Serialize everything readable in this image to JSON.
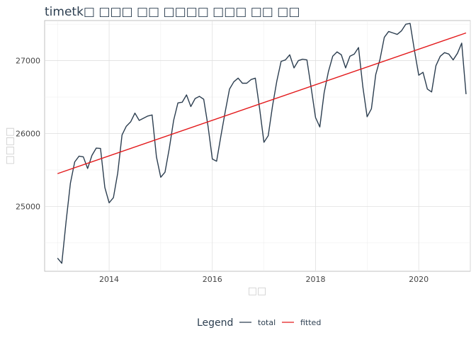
{
  "chart_data": {
    "type": "line",
    "title": "timetk□ □□□ □□ □□□□ □□□ □□ □□",
    "xlabel": "□□",
    "ylabel": "□□□□",
    "x_ticks": [
      "2014",
      "2016",
      "2018",
      "2020"
    ],
    "y_ticks": [
      "25000",
      "26000",
      "27000"
    ],
    "xlim": [
      2012.75,
      2021.0
    ],
    "ylim": [
      24110,
      27550
    ],
    "grid": true,
    "legend": {
      "title": "Legend",
      "position": "bottom",
      "labels": [
        "total",
        "fitted"
      ]
    },
    "series": [
      {
        "name": "total",
        "color": "#2c3e50",
        "x": [
          2013.0,
          2013.083,
          2013.167,
          2013.25,
          2013.333,
          2013.417,
          2013.5,
          2013.583,
          2013.667,
          2013.75,
          2013.833,
          2013.917,
          2014.0,
          2014.083,
          2014.167,
          2014.25,
          2014.333,
          2014.417,
          2014.5,
          2014.583,
          2014.667,
          2014.75,
          2014.833,
          2014.917,
          2015.0,
          2015.083,
          2015.167,
          2015.25,
          2015.333,
          2015.417,
          2015.5,
          2015.583,
          2015.667,
          2015.75,
          2015.833,
          2015.917,
          2016.0,
          2016.083,
          2016.167,
          2016.25,
          2016.333,
          2016.417,
          2016.5,
          2016.583,
          2016.667,
          2016.75,
          2016.833,
          2016.917,
          2017.0,
          2017.083,
          2017.167,
          2017.25,
          2017.333,
          2017.417,
          2017.5,
          2017.583,
          2017.667,
          2017.75,
          2017.833,
          2017.917,
          2018.0,
          2018.083,
          2018.167,
          2018.25,
          2018.333,
          2018.417,
          2018.5,
          2018.583,
          2018.667,
          2018.75,
          2018.833,
          2018.917,
          2019.0,
          2019.083,
          2019.167,
          2019.25,
          2019.333,
          2019.417,
          2019.5,
          2019.583,
          2019.667,
          2019.75,
          2019.833,
          2019.917,
          2020.0,
          2020.083,
          2020.167,
          2020.25,
          2020.333,
          2020.417,
          2020.5,
          2020.583,
          2020.667,
          2020.75,
          2020.833,
          2020.917
        ],
        "y": [
          24290,
          24220,
          24800,
          25320,
          25610,
          25690,
          25680,
          25520,
          25700,
          25800,
          25795,
          25260,
          25050,
          25120,
          25460,
          25980,
          26100,
          26160,
          26280,
          26180,
          26210,
          26240,
          26255,
          25680,
          25400,
          25470,
          25800,
          26180,
          26420,
          26430,
          26530,
          26370,
          26480,
          26510,
          26470,
          26100,
          25650,
          25620,
          25970,
          26300,
          26610,
          26710,
          26760,
          26690,
          26690,
          26740,
          26760,
          26340,
          25880,
          25970,
          26380,
          26720,
          26990,
          27010,
          27080,
          26900,
          27000,
          27020,
          27010,
          26620,
          26220,
          26090,
          26560,
          26850,
          27060,
          27120,
          27080,
          26900,
          27060,
          27090,
          27180,
          26640,
          26230,
          26340,
          26810,
          27020,
          27320,
          27400,
          27380,
          27360,
          27410,
          27500,
          27510,
          27140,
          26800,
          26840,
          26610,
          26570,
          26930,
          27060,
          27110,
          27090,
          27010,
          27100,
          27240,
          26540
        ]
      },
      {
        "name": "fitted",
        "color": "#e31a1c",
        "x": [
          2013.0,
          2020.917
        ],
        "y": [
          25450,
          27380
        ]
      }
    ]
  }
}
